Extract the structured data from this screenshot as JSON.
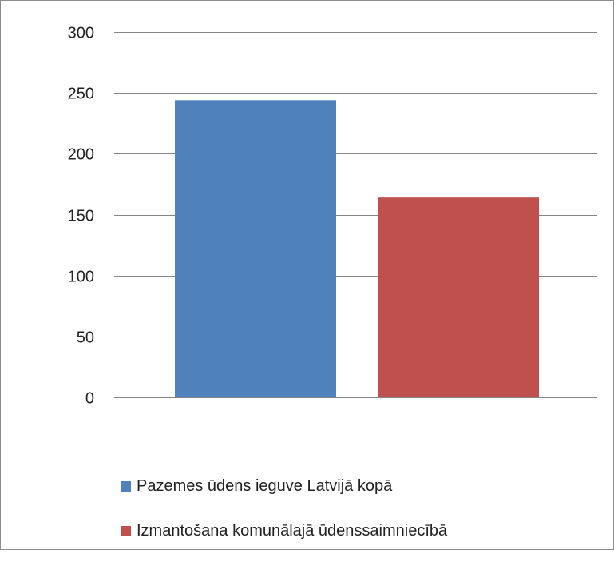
{
  "chart_data": {
    "type": "bar",
    "categories": [
      ""
    ],
    "series": [
      {
        "name": "Pazemes ūdens ieguve Latvijā kopā",
        "values": [
          244
        ],
        "color": "#4f81bd"
      },
      {
        "name": "Izmantošana komunālajā ūdenssaimniecībā",
        "values": [
          164
        ],
        "color": "#c0504d"
      }
    ],
    "ylim": [
      0,
      300
    ],
    "yticks": [
      0,
      50,
      100,
      150,
      200,
      250,
      300
    ],
    "title": "",
    "xlabel": "",
    "ylabel": "",
    "grid": true,
    "gridColor": "#868686",
    "legend_position": "bottom"
  }
}
